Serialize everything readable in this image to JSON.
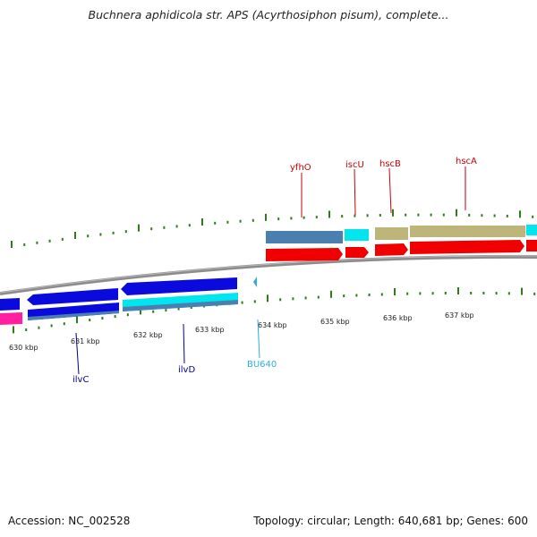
{
  "title": "Buchnera aphidicola str. APS (Acyrthosiphon pisum), complete...",
  "footer": {
    "accession": "Accession: NC_002528",
    "summary": "Topology: circular; Length: 640,681 bp; Genes: 600"
  },
  "colors": {
    "backbone": "#8c8c8c",
    "tick": "#2e7d16",
    "blue": "#0a0adc",
    "steel": "#4a7fb0",
    "cyan": "#00e5ee",
    "red": "#f00000",
    "khaki": "#bdb57a",
    "magenta": "#ff1fa0",
    "label_red": "#cc0000",
    "label_blue": "#00008b",
    "label_cyan": "#2ab0e0"
  },
  "scale_labels": [
    "630 kbp",
    "631 kbp",
    "632 kbp",
    "633 kbp",
    "634 kbp",
    "635 kbp",
    "636 kbp",
    "637 kbp"
  ],
  "gene_labels": [
    "yfhO",
    "iscU",
    "hscB",
    "hscA",
    "ilvC",
    "ilvD",
    "BU640"
  ]
}
